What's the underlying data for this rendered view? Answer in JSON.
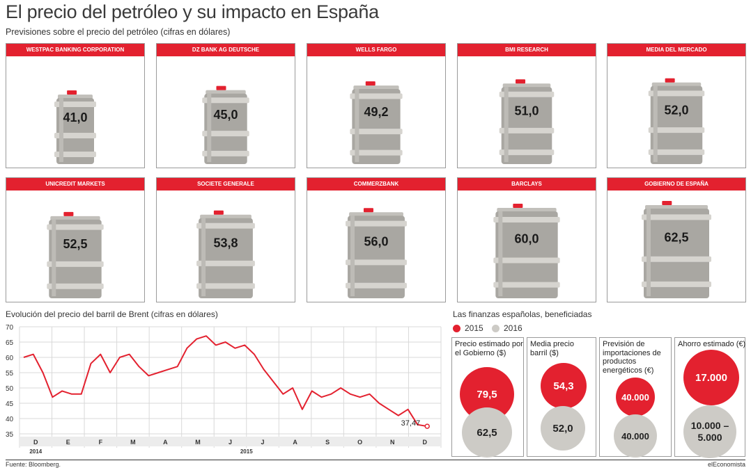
{
  "title": "El precio del petróleo y su impacto en España",
  "subtitle": "Previsiones sobre el precio del petróleo (cifras en dólares)",
  "forecasts": [
    {
      "source": "WESTPAC BANKING CORPORATION",
      "value": "41,0",
      "num": 41.0
    },
    {
      "source": "DZ BANK AG DEUTSCHE",
      "value": "45,0",
      "num": 45.0
    },
    {
      "source": "WELLS FARGO",
      "value": "49,2",
      "num": 49.2
    },
    {
      "source": "BMI RESEARCH",
      "value": "51,0",
      "num": 51.0
    },
    {
      "source": "MEDIA DEL MERCADO",
      "value": "52,0",
      "num": 52.0
    },
    {
      "source": "UNICREDIT MARKETS",
      "value": "52,5",
      "num": 52.5
    },
    {
      "source": "SOCIETE GENERALE",
      "value": "53,8",
      "num": 53.8
    },
    {
      "source": "COMMERZBANK",
      "value": "56,0",
      "num": 56.0
    },
    {
      "source": "BARCLAYS",
      "value": "60,0",
      "num": 60.0
    },
    {
      "source": "GOBIERNO DE ESPAÑA",
      "value": "62,5",
      "num": 62.5
    }
  ],
  "chart_data": [
    {
      "type": "bar",
      "title": "Previsiones sobre el precio del petróleo (cifras en dólares)",
      "categories": [
        "WESTPAC BANKING CORPORATION",
        "DZ BANK AG DEUTSCHE",
        "WELLS FARGO",
        "BMI RESEARCH",
        "MEDIA DEL MERCADO",
        "UNICREDIT MARKETS",
        "SOCIETE GENERALE",
        "COMMERZBANK",
        "BARCLAYS",
        "GOBIERNO DE ESPAÑA"
      ],
      "values": [
        41.0,
        45.0,
        49.2,
        51.0,
        52.0,
        52.5,
        53.8,
        56.0,
        60.0,
        62.5
      ]
    },
    {
      "type": "line",
      "title": "Evolución del precio del barril de Brent (cifras en dólares)",
      "ylim": [
        35,
        70
      ],
      "yticks": [
        "70",
        "65",
        "60",
        "55",
        "50",
        "45",
        "40",
        "35"
      ],
      "month_labels": [
        "D",
        "E",
        "F",
        "M",
        "A",
        "M",
        "J",
        "J",
        "A",
        "S",
        "O",
        "N",
        "D"
      ],
      "year_labels": [
        "2014",
        "2015"
      ],
      "last_value_label": "37,47",
      "x": [
        0,
        0.3,
        0.6,
        0.9,
        1.2,
        1.5,
        1.8,
        2.1,
        2.4,
        2.7,
        3.0,
        3.3,
        3.6,
        3.9,
        4.2,
        4.5,
        4.8,
        5.1,
        5.4,
        5.7,
        6.0,
        6.3,
        6.6,
        6.9,
        7.2,
        7.5,
        7.8,
        8.1,
        8.4,
        8.7,
        9.0,
        9.3,
        9.6,
        9.9,
        10.2,
        10.5,
        10.8,
        11.1,
        11.4,
        11.7,
        12.0,
        12.3,
        12.6
      ],
      "y": [
        60,
        61,
        55,
        47,
        49,
        48,
        48,
        58,
        61,
        55,
        60,
        61,
        57,
        54,
        55,
        56,
        57,
        63,
        66,
        67,
        64,
        65,
        63,
        64,
        61,
        56,
        52,
        48,
        50,
        43,
        49,
        47,
        48,
        50,
        48,
        47,
        48,
        45,
        43,
        41,
        43,
        38,
        37.47
      ]
    },
    {
      "type": "table",
      "title": "Las finanzas españolas, beneficiadas",
      "series": [
        {
          "name": "2015"
        },
        {
          "name": "2016"
        }
      ]
    }
  ],
  "finances": {
    "title": "Las finanzas españolas, beneficiadas",
    "legend": [
      {
        "label": "2015",
        "color": "#e3212f"
      },
      {
        "label": "2016",
        "color": "#cdcbc6"
      }
    ],
    "cards": [
      {
        "label": "Precio estimado por el Gobierno ($)",
        "v2015": "79,5",
        "v2016": "62,5"
      },
      {
        "label": "Media precio barril ($)",
        "v2015": "54,3",
        "v2016": "52,0"
      },
      {
        "label": "Previsión de importaciones de productos energéticos (€)",
        "v2015": "40.000",
        "v2016": "40.000"
      },
      {
        "label": "Ahorro estimado (€)",
        "v2015": "17.000",
        "v2016": "10.000 –5.000"
      }
    ]
  },
  "footer": {
    "source": "Fuente: Bloomberg.",
    "brand": "elEconomista"
  },
  "colors": {
    "accent": "#e3212f",
    "barrel_body": "#a9a7a2",
    "barrel_band": "#d6d4cf",
    "barrel_top": "#c2c0bb",
    "grey": "#cdcbc6",
    "line": "#e3212f"
  }
}
